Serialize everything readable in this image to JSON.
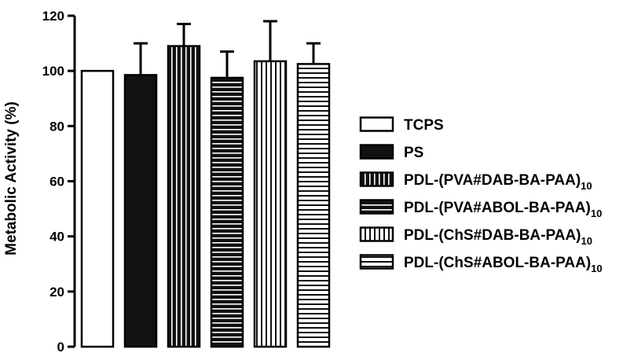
{
  "chart_data": {
    "type": "bar",
    "ylabel": "Metabolic Activity (%)",
    "xlabel": "",
    "title": "",
    "ylim": [
      0,
      120
    ],
    "yticks": [
      0,
      20,
      40,
      60,
      80,
      100,
      120
    ],
    "grid": false,
    "legend_position": "right",
    "series": [
      {
        "name": "TCPS",
        "legend_main": "TCPS",
        "legend_sub": "",
        "value": 100,
        "error": 0,
        "pattern": "open"
      },
      {
        "name": "PS",
        "legend_main": "PS",
        "legend_sub": "",
        "value": 98.5,
        "error": 11.5,
        "pattern": "solid"
      },
      {
        "name": "PDL-(PVA#DAB-BA-PAA)10",
        "legend_main": "PDL-(PVA#DAB-BA-PAA)",
        "legend_sub": "10",
        "value": 109,
        "error": 8,
        "pattern": "vertical-dark"
      },
      {
        "name": "PDL-(PVA#ABOL-BA-PAA)10",
        "legend_main": "PDL-(PVA#ABOL-BA-PAA)",
        "legend_sub": "10",
        "value": 97.5,
        "error": 9.5,
        "pattern": "horizontal-dark"
      },
      {
        "name": "PDL-(ChS#DAB-BA-PAA)10",
        "legend_main": "PDL-(ChS#DAB-BA-PAA)",
        "legend_sub": "10",
        "value": 103.5,
        "error": 14.5,
        "pattern": "vertical-light"
      },
      {
        "name": "PDL-(ChS#ABOL-BA-PAA)10",
        "legend_main": "PDL-(ChS#ABOL-BA-PAA)",
        "legend_sub": "10",
        "value": 102.5,
        "error": 7.5,
        "pattern": "horizontal-light"
      }
    ]
  }
}
